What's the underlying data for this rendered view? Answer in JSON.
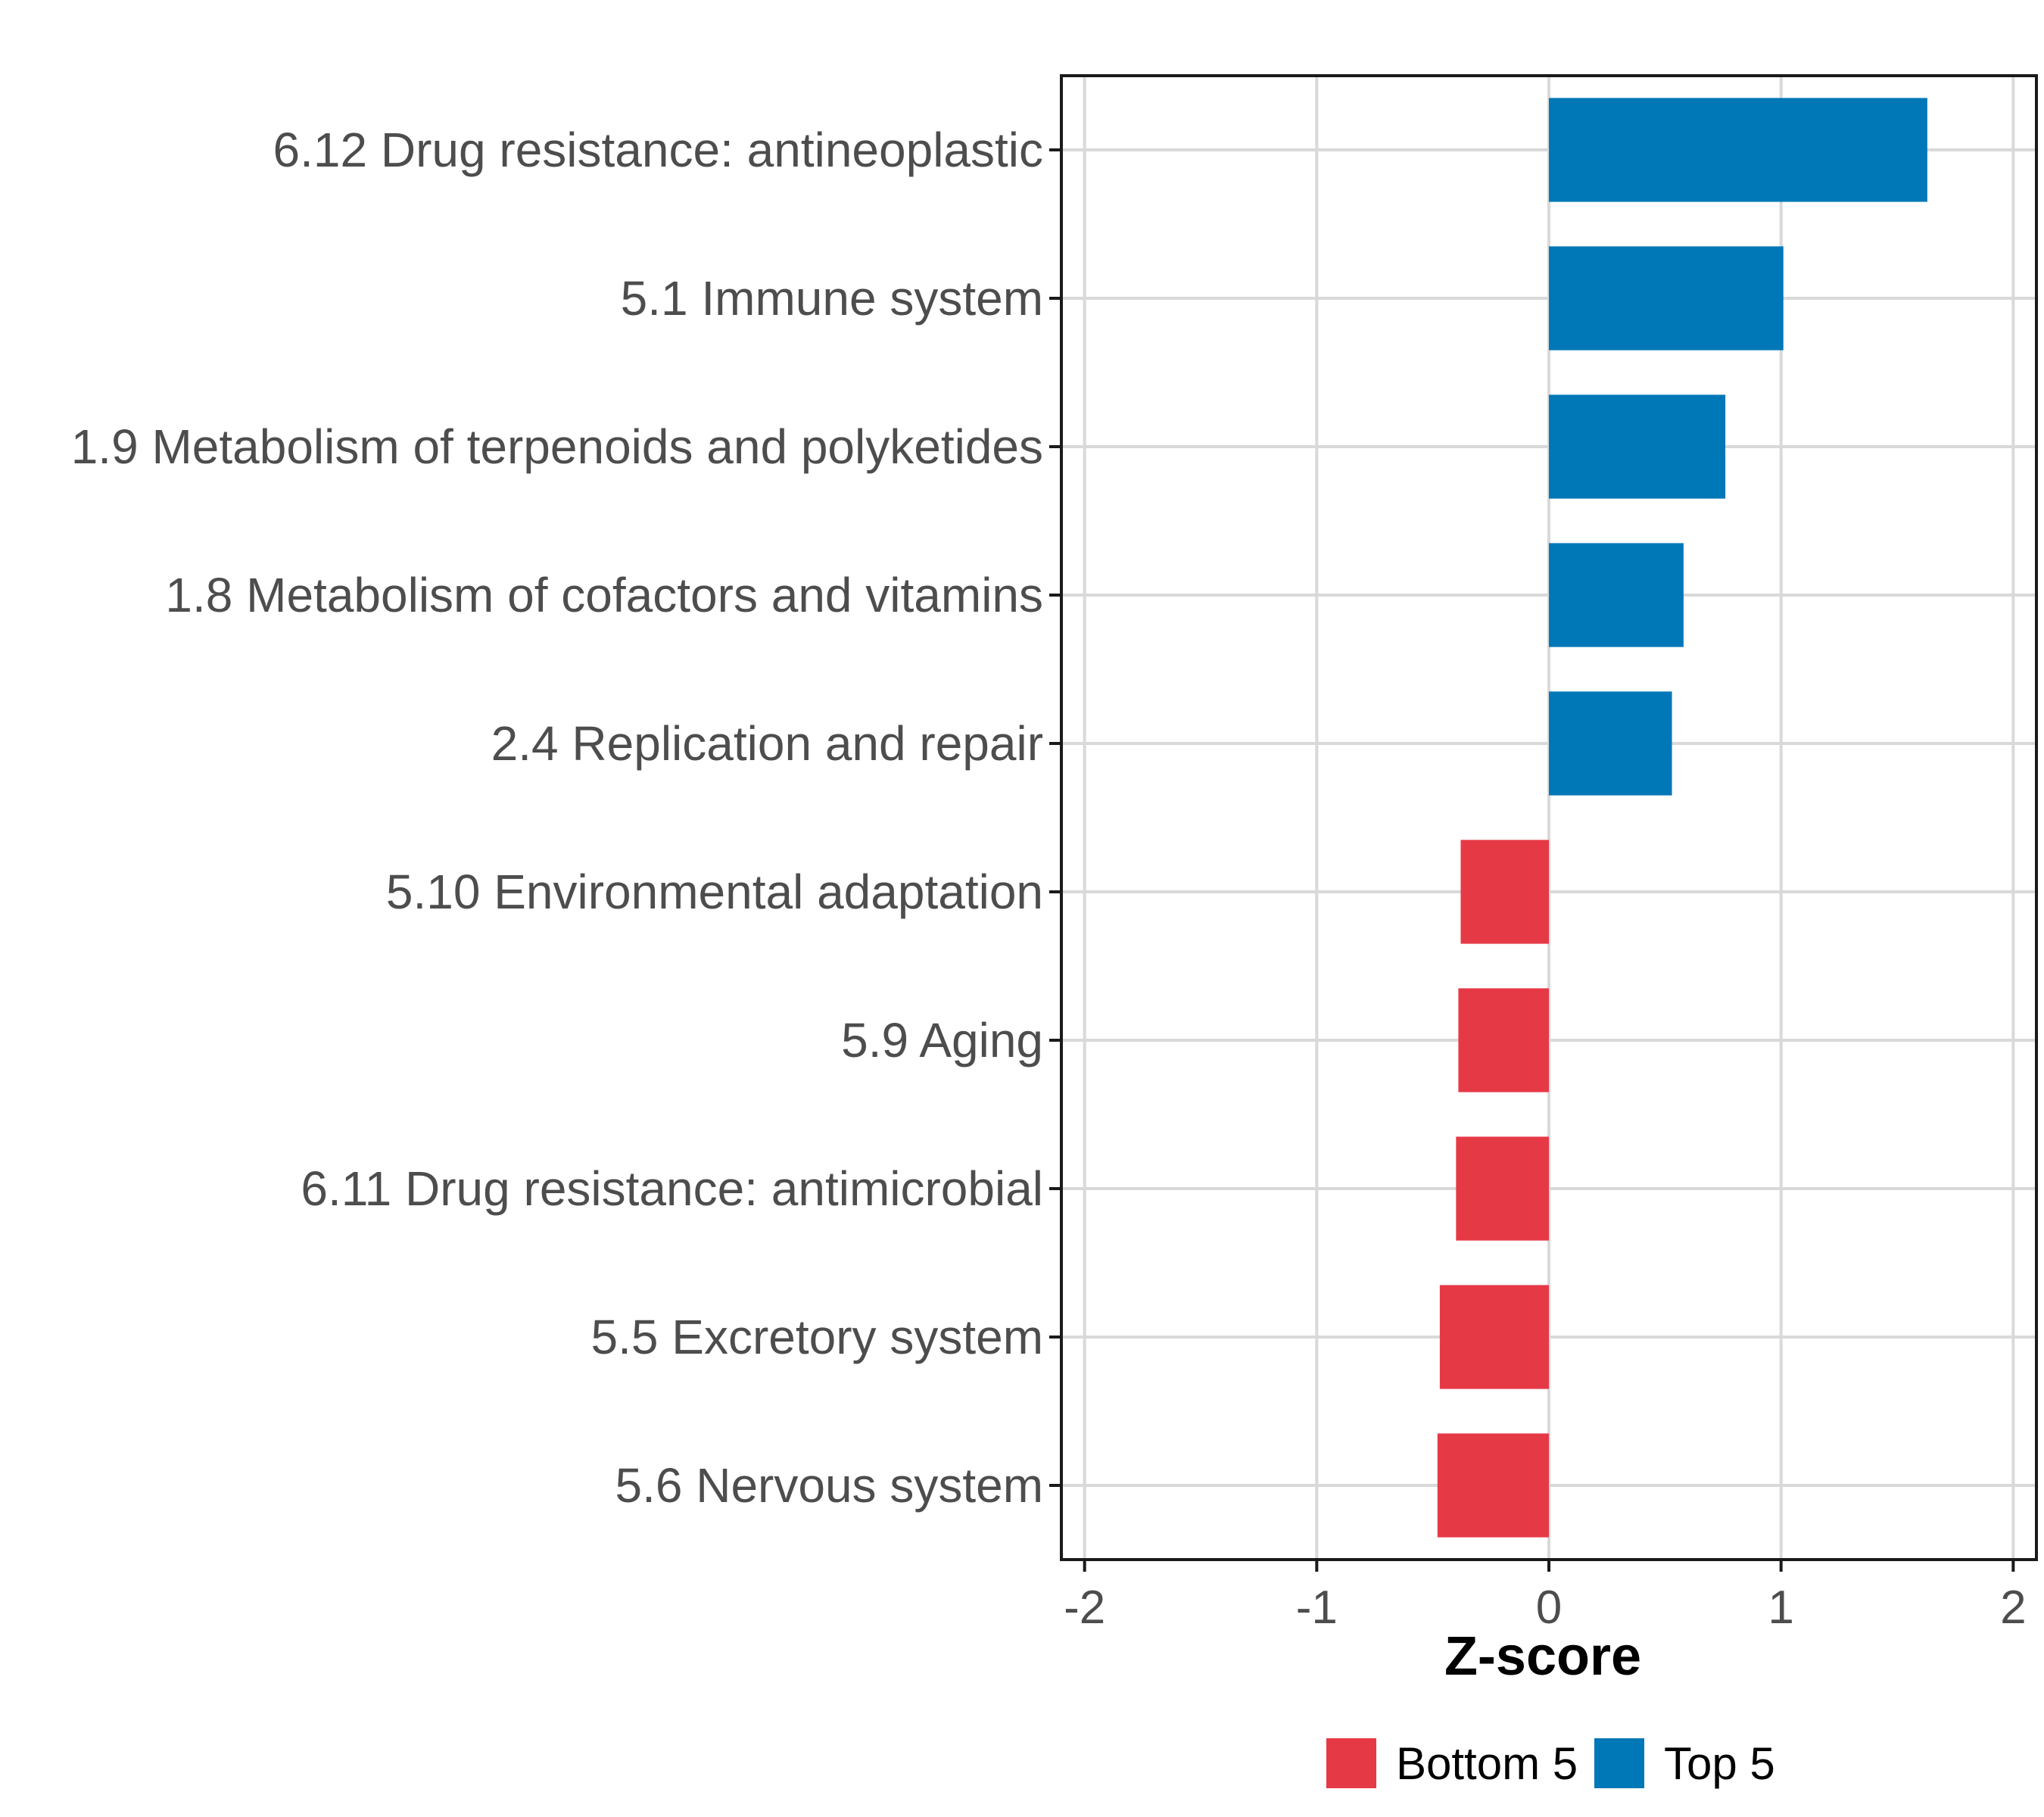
{
  "chart_data": {
    "type": "bar",
    "orientation": "horizontal",
    "xlabel": "Z-score",
    "ylabel": "",
    "xlim": [
      -2.1,
      2.1
    ],
    "xticks": [
      -2,
      -1,
      0,
      1,
      2
    ],
    "xtick_labels": [
      "-2",
      "-1",
      "0",
      "1",
      "2"
    ],
    "grid": true,
    "legend_position": "bottom",
    "bars": [
      {
        "label": "6.12 Drug resistance: antineoplastic",
        "value": 1.63,
        "group": "Top 5"
      },
      {
        "label": "5.1 Immune system",
        "value": 1.01,
        "group": "Top 5"
      },
      {
        "label": "1.9 Metabolism of terpenoids and polyketides",
        "value": 0.76,
        "group": "Top 5"
      },
      {
        "label": "1.8 Metabolism of cofactors and vitamins",
        "value": 0.58,
        "group": "Top 5"
      },
      {
        "label": "2.4 Replication and repair",
        "value": 0.53,
        "group": "Top 5"
      },
      {
        "label": "5.10 Environmental adaptation",
        "value": -0.38,
        "group": "Bottom 5"
      },
      {
        "label": "5.9 Aging",
        "value": -0.39,
        "group": "Bottom 5"
      },
      {
        "label": "6.11 Drug resistance: antimicrobial",
        "value": -0.4,
        "group": "Bottom 5"
      },
      {
        "label": "5.5 Excretory system",
        "value": -0.47,
        "group": "Bottom 5"
      },
      {
        "label": "5.6 Nervous system",
        "value": -0.48,
        "group": "Bottom 5"
      }
    ],
    "legend": [
      {
        "name": "Bottom 5",
        "color": "#E63946"
      },
      {
        "name": "Top 5",
        "color": "#0077B6"
      }
    ]
  },
  "colors": {
    "top": "#0077B6",
    "bottom": "#E63946",
    "grid": "#d9d9d9",
    "panel_border": "#1a1a1a",
    "text": "#4d4d4d"
  }
}
